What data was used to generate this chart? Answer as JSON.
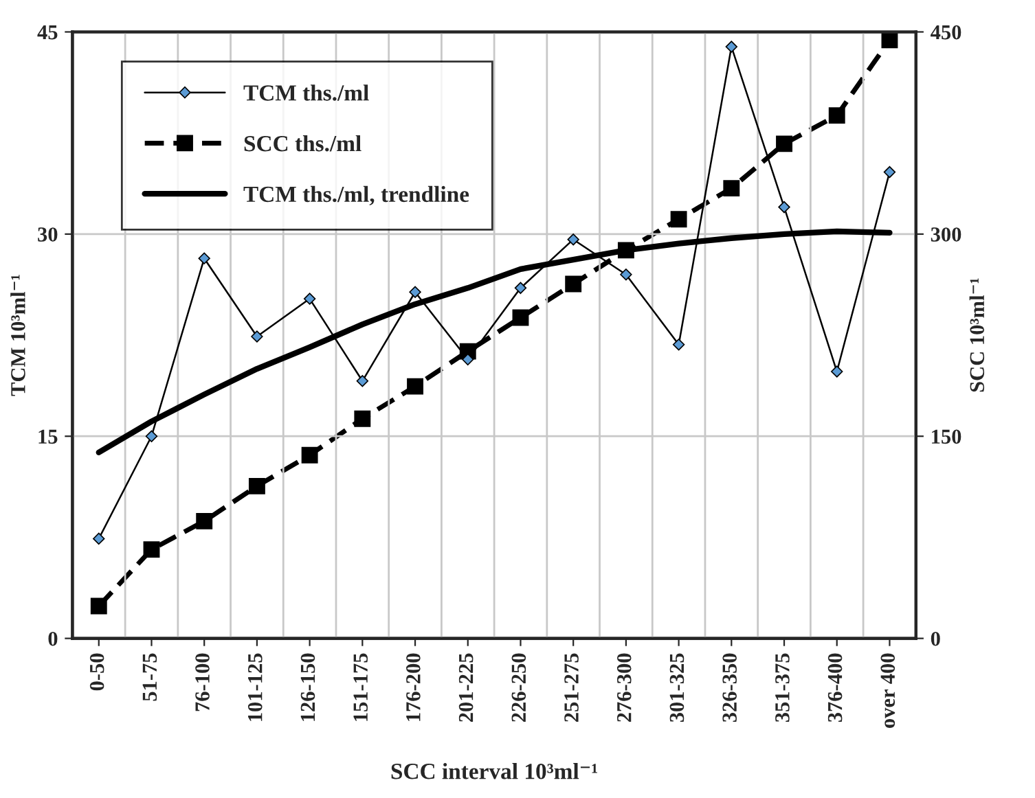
{
  "chart_data": {
    "type": "line",
    "xlabel": "SCC interval 10³ml⁻¹",
    "ylabel": "TCM 10³ml⁻¹",
    "y2label": "SCC 10³ml⁻¹",
    "categories": [
      "0-50",
      "51-75",
      "76-100",
      "101-125",
      "126-150",
      "151-175",
      "176-200",
      "201-225",
      "226-250",
      "251-275",
      "276-300",
      "301-325",
      "326-350",
      "351-375",
      "376-400",
      "over 400"
    ],
    "series": [
      {
        "name": "TCM ths./ml",
        "color": "#000000",
        "marker": "diamond",
        "line_style": "solid",
        "values": [
          7.4,
          15.0,
          28.2,
          22.4,
          25.2,
          19.1,
          25.7,
          20.7,
          26.0,
          29.6,
          27.0,
          21.8,
          43.9,
          32.0,
          19.8,
          34.6
        ]
      },
      {
        "name": "SCC ths./ml",
        "color": "#000000",
        "marker": "square",
        "line_style": "dashed",
        "axis": "y2",
        "values": [
          24,
          66,
          87,
          113,
          136,
          163,
          187,
          213,
          238,
          263,
          288,
          311,
          334,
          367,
          388,
          444
        ]
      },
      {
        "name": "TCM ths./ml, trendline",
        "color": "#000000",
        "marker": "none",
        "line_style": "solid",
        "values": [
          13.8,
          16.1,
          18.1,
          20.0,
          21.6,
          23.3,
          24.8,
          26.0,
          27.4,
          28.1,
          28.8,
          29.3,
          29.7,
          30.0,
          30.2,
          30.1
        ]
      }
    ],
    "ylim": [
      0,
      45
    ],
    "yticks": [
      0,
      15,
      30,
      45
    ],
    "y2lim": [
      0,
      450
    ],
    "y2ticks": [
      0,
      150,
      300,
      450
    ],
    "grid": true,
    "legend": "top left"
  }
}
